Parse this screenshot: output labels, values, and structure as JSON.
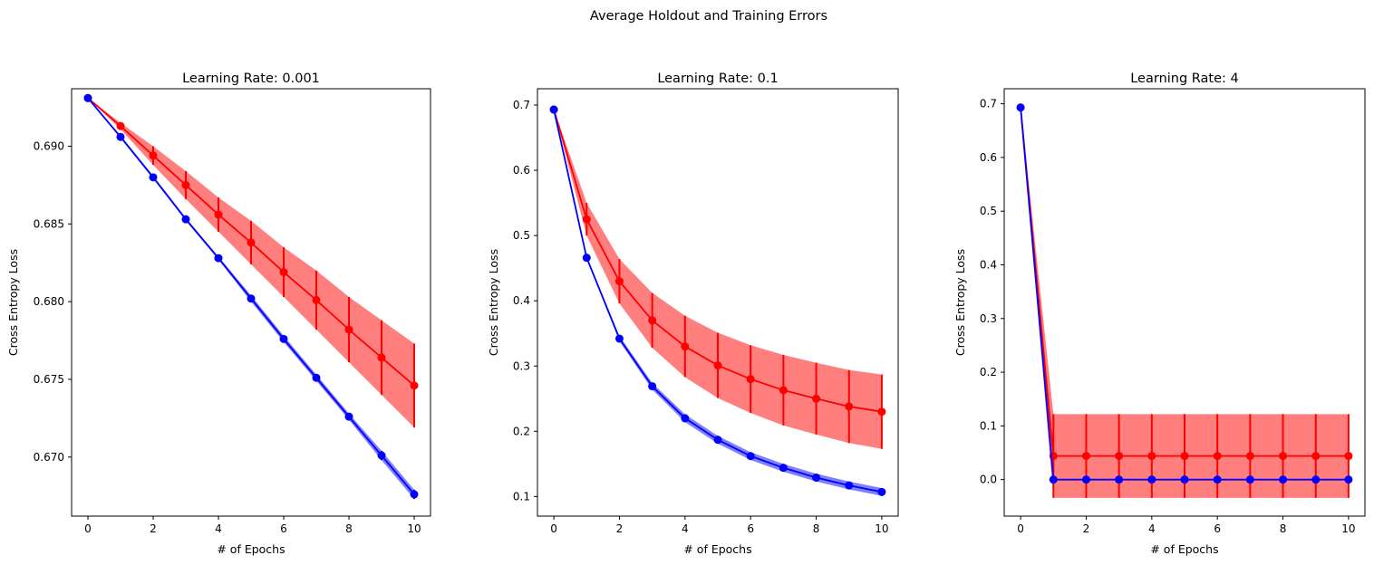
{
  "figure": {
    "suptitle": "Average Holdout and Training Errors"
  },
  "colors": {
    "holdout": "#ff0000",
    "holdout_band": "#ff7f7f",
    "training": "#0000ff",
    "training_band": "#7f7fff"
  },
  "chart_data": [
    {
      "type": "line",
      "title": "Learning Rate: 0.001",
      "xlabel": "# of Epochs",
      "ylabel": "Cross Entropy Loss",
      "xlim": [
        -0.5,
        10.5
      ],
      "ylim": [
        0.6662,
        0.6937
      ],
      "xticks": [
        0,
        2,
        4,
        6,
        8,
        10
      ],
      "yticks": [
        0.67,
        0.675,
        0.68,
        0.685,
        0.69
      ],
      "ytick_labels": [
        "0.670",
        "0.675",
        "0.680",
        "0.685",
        "0.690"
      ],
      "x": [
        0,
        1,
        2,
        3,
        4,
        5,
        6,
        7,
        8,
        9,
        10
      ],
      "series": [
        {
          "role": "holdout",
          "values": [
            0.6931,
            0.6913,
            0.6894,
            0.6875,
            0.6856,
            0.6838,
            0.6819,
            0.6801,
            0.6782,
            0.6764,
            0.6746
          ],
          "error": [
            0.0,
            0.0002,
            0.0006,
            0.0009,
            0.0011,
            0.0014,
            0.0016,
            0.0019,
            0.0021,
            0.0024,
            0.0027
          ]
        },
        {
          "role": "training",
          "values": [
            0.6931,
            0.6906,
            0.688,
            0.6853,
            0.6828,
            0.6802,
            0.6776,
            0.6751,
            0.6726,
            0.6701,
            0.6676
          ],
          "error": [
            0.0,
            0.0001,
            0.0001,
            0.0001,
            0.0001,
            0.0002,
            0.0002,
            0.0002,
            0.0002,
            0.0003,
            0.0003
          ]
        }
      ]
    },
    {
      "type": "line",
      "title": "Learning Rate: 0.1",
      "xlabel": "# of Epochs",
      "ylabel": "Cross Entropy Loss",
      "xlim": [
        -0.5,
        10.5
      ],
      "ylim": [
        0.07,
        0.725
      ],
      "xticks": [
        0,
        2,
        4,
        6,
        8,
        10
      ],
      "yticks": [
        0.1,
        0.2,
        0.3,
        0.4,
        0.5,
        0.6,
        0.7
      ],
      "ytick_labels": [
        "0.1",
        "0.2",
        "0.3",
        "0.4",
        "0.5",
        "0.6",
        "0.7"
      ],
      "x": [
        0,
        1,
        2,
        3,
        4,
        5,
        6,
        7,
        8,
        9,
        10
      ],
      "series": [
        {
          "role": "holdout",
          "values": [
            0.693,
            0.525,
            0.43,
            0.37,
            0.33,
            0.301,
            0.28,
            0.263,
            0.25,
            0.238,
            0.23
          ],
          "error": [
            0.0,
            0.025,
            0.034,
            0.042,
            0.047,
            0.05,
            0.052,
            0.054,
            0.055,
            0.056,
            0.057
          ]
        },
        {
          "role": "training",
          "values": [
            0.693,
            0.466,
            0.342,
            0.269,
            0.22,
            0.187,
            0.162,
            0.144,
            0.129,
            0.117,
            0.107
          ],
          "error": [
            0.0,
            0.002,
            0.004,
            0.005,
            0.006,
            0.006,
            0.006,
            0.006,
            0.006,
            0.006,
            0.006
          ]
        }
      ]
    },
    {
      "type": "line",
      "title": "Learning Rate: 4",
      "xlabel": "# of Epochs",
      "ylabel": "Cross Entropy Loss",
      "xlim": [
        -0.5,
        10.5
      ],
      "ylim": [
        -0.068,
        0.728
      ],
      "xticks": [
        0,
        2,
        4,
        6,
        8,
        10
      ],
      "yticks": [
        0.0,
        0.1,
        0.2,
        0.3,
        0.4,
        0.5,
        0.6,
        0.7
      ],
      "ytick_labels": [
        "0.0",
        "0.1",
        "0.2",
        "0.3",
        "0.4",
        "0.5",
        "0.6",
        "0.7"
      ],
      "x": [
        0,
        1,
        2,
        3,
        4,
        5,
        6,
        7,
        8,
        9,
        10
      ],
      "series": [
        {
          "role": "holdout",
          "values": [
            0.693,
            0.044,
            0.044,
            0.044,
            0.044,
            0.044,
            0.044,
            0.044,
            0.044,
            0.044,
            0.044
          ],
          "error": [
            0.0,
            0.078,
            0.078,
            0.078,
            0.078,
            0.078,
            0.078,
            0.078,
            0.078,
            0.078,
            0.078
          ]
        },
        {
          "role": "training",
          "values": [
            0.693,
            0.0,
            0.0,
            0.0,
            0.0,
            0.0,
            0.0,
            0.0,
            0.0,
            0.0,
            0.0
          ],
          "error": [
            0.0,
            0.0,
            0.0,
            0.0,
            0.0,
            0.0,
            0.0,
            0.0,
            0.0,
            0.0,
            0.0
          ]
        }
      ]
    }
  ]
}
